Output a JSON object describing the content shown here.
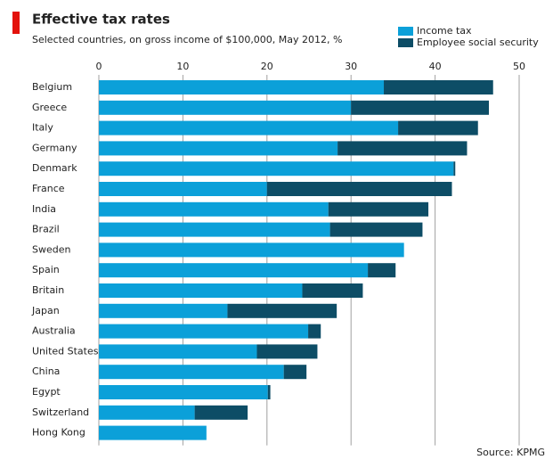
{
  "chart_data": {
    "type": "stacked-bar-horizontal",
    "title": "Effective tax rates",
    "subtitle": "Selected countries, on gross income of $100,000, May 2012, %",
    "source": "Source: KPMG",
    "categories": [
      "Belgium",
      "Greece",
      "Italy",
      "Germany",
      "Denmark",
      "France",
      "India",
      "Brazil",
      "Sweden",
      "Spain",
      "Britain",
      "Japan",
      "Australia",
      "United States",
      "China",
      "Egypt",
      "Switzerland",
      "Hong Kong"
    ],
    "series": [
      {
        "name": "Income tax",
        "color": "#0ba0d9",
        "values": [
          33.9,
          30.0,
          35.6,
          28.4,
          42.2,
          20.0,
          27.3,
          27.5,
          36.3,
          32.0,
          24.2,
          15.3,
          24.9,
          18.8,
          22.0,
          20.1,
          11.4,
          12.8
        ]
      },
      {
        "name": "Employee social security",
        "color": "#0d4d66",
        "values": [
          13.0,
          16.4,
          9.5,
          15.4,
          0.2,
          22.0,
          11.9,
          11.0,
          0,
          3.3,
          7.2,
          13.0,
          1.5,
          7.2,
          2.7,
          0.3,
          6.3,
          0
        ]
      }
    ],
    "xlim": [
      0,
      50
    ],
    "xticks": [
      0,
      10,
      20,
      30,
      40,
      50
    ],
    "grid": true
  }
}
